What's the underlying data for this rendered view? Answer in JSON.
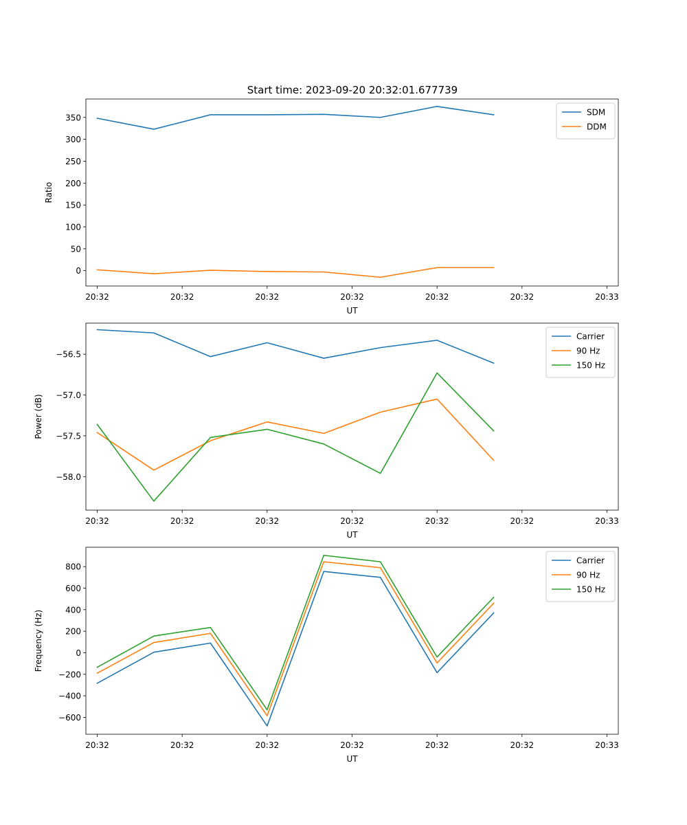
{
  "figure": {
    "suptitle": "Start time: 2023-09-20 20:32:01.677739"
  },
  "colors": {
    "blue": "#1f77b4",
    "orange": "#ff7f0e",
    "green": "#2ca02c"
  },
  "chart_data": [
    {
      "type": "line",
      "title": "Start time: 2023-09-20 20:32:01.677739",
      "xlabel": "UT",
      "ylabel": "Ratio",
      "x": [
        1,
        2,
        3,
        4,
        5,
        6,
        7,
        8
      ],
      "xlim": [
        0.8,
        10.2
      ],
      "xticks": [
        1,
        2.5,
        4,
        5.5,
        7,
        8.5,
        10
      ],
      "xtick_labels": [
        "20:32",
        "20:32",
        "20:32",
        "20:32",
        "20:32",
        "20:32",
        "20:33"
      ],
      "ylim": [
        -35,
        392
      ],
      "yticks": [
        0,
        50,
        100,
        150,
        200,
        250,
        300,
        350
      ],
      "ytick_labels": [
        "0",
        "50",
        "100",
        "150",
        "200",
        "250",
        "300",
        "350"
      ],
      "legend": "top-right",
      "series": [
        {
          "name": "SDM",
          "color": "#1f77b4",
          "values": [
            348,
            323,
            356,
            356,
            357,
            350,
            375,
            356
          ]
        },
        {
          "name": "DDM",
          "color": "#ff7f0e",
          "values": [
            2,
            -7,
            1,
            -2,
            -3,
            -15,
            7,
            7
          ]
        }
      ]
    },
    {
      "type": "line",
      "xlabel": "UT",
      "ylabel": "Power (dB)",
      "x": [
        1,
        2,
        3,
        4,
        5,
        6,
        7,
        8
      ],
      "xlim": [
        0.8,
        10.2
      ],
      "xticks": [
        1,
        2.5,
        4,
        5.5,
        7,
        8.5,
        10
      ],
      "xtick_labels": [
        "20:32",
        "20:32",
        "20:32",
        "20:32",
        "20:32",
        "20:32",
        "20:33"
      ],
      "ylim": [
        -58.41,
        -56.12
      ],
      "yticks": [
        -58.0,
        -57.5,
        -57.0,
        -56.5
      ],
      "ytick_labels": [
        "−58.0",
        "−57.5",
        "−57.0",
        "−56.5"
      ],
      "legend": "top-right",
      "series": [
        {
          "name": "Carrier",
          "color": "#1f77b4",
          "values": [
            -56.2,
            -56.24,
            -56.53,
            -56.36,
            -56.55,
            -56.42,
            -56.33,
            -56.61
          ]
        },
        {
          "name": "90 Hz",
          "color": "#ff7f0e",
          "values": [
            -57.46,
            -57.92,
            -57.56,
            -57.33,
            -57.47,
            -57.21,
            -57.05,
            -57.8
          ]
        },
        {
          "name": "150 Hz",
          "color": "#2ca02c",
          "values": [
            -57.36,
            -58.3,
            -57.52,
            -57.42,
            -57.6,
            -57.96,
            -56.73,
            -57.44
          ]
        }
      ]
    },
    {
      "type": "line",
      "xlabel": "UT",
      "ylabel": "Frequency (Hz)",
      "x": [
        1,
        2,
        3,
        4,
        5,
        6,
        7,
        8
      ],
      "xlim": [
        0.8,
        10.2
      ],
      "xticks": [
        1,
        2.5,
        4,
        5.5,
        7,
        8.5,
        10
      ],
      "xtick_labels": [
        "20:32",
        "20:32",
        "20:32",
        "20:32",
        "20:32",
        "20:32",
        "20:33"
      ],
      "ylim": [
        -757,
        980
      ],
      "yticks": [
        -600,
        -400,
        -200,
        0,
        200,
        400,
        600,
        800
      ],
      "ytick_labels": [
        "−600",
        "−400",
        "−200",
        "0",
        "200",
        "400",
        "600",
        "800"
      ],
      "legend": "top-right",
      "series": [
        {
          "name": "Carrier",
          "color": "#1f77b4",
          "values": [
            -283,
            5,
            90,
            -680,
            755,
            700,
            -185,
            370
          ]
        },
        {
          "name": "90 Hz",
          "color": "#ff7f0e",
          "values": [
            -190,
            95,
            180,
            -585,
            845,
            790,
            -95,
            460
          ]
        },
        {
          "name": "150 Hz",
          "color": "#2ca02c",
          "values": [
            -135,
            155,
            235,
            -530,
            905,
            845,
            -40,
            515
          ]
        }
      ]
    }
  ]
}
